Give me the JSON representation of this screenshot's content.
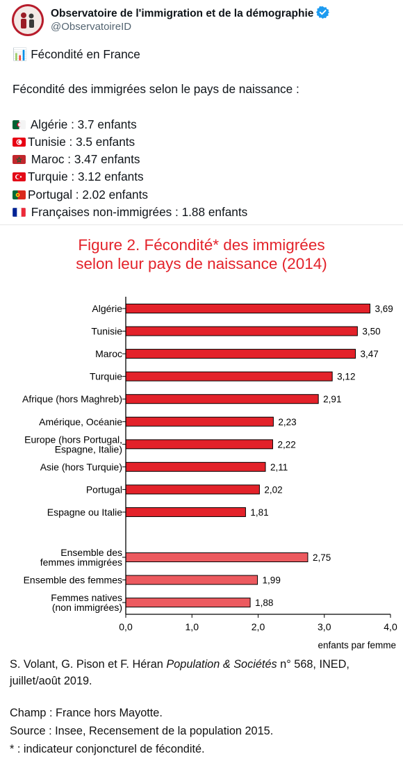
{
  "author": {
    "name": "Observatoire de l'immigration et de la démographie",
    "handle": "@ObservatoireID",
    "verified_icon": "verified-badge-icon"
  },
  "tweet": {
    "chart_emoji": "📊",
    "title": "Fécondité en France",
    "intro": "Fécondité des immigrées selon le pays de naissance :",
    "lines": [
      {
        "flag": "algeria-flag-icon",
        "text": " Algérie : 3.7 enfants"
      },
      {
        "flag": "tunisia-flag-icon",
        "text": "Tunisie : 3.5 enfants"
      },
      {
        "flag": "morocco-flag-icon",
        "text": " Maroc : 3.47 enfants"
      },
      {
        "flag": "turkey-flag-icon",
        "text": "Turquie : 3.12 enfants"
      },
      {
        "flag": "portugal-flag-icon",
        "text": "Portugal : 2.02 enfants"
      },
      {
        "flag": "france-flag-icon",
        "text": " Françaises non-immigrées : 1.88 enfants"
      }
    ]
  },
  "colors": {
    "bar_dark": "#e3222a",
    "bar_light": "#ec5a5f",
    "title_red": "#e3222a"
  },
  "chart_data": {
    "type": "bar",
    "orientation": "horizontal",
    "title_line1": "Figure 2. Fécondité* des immigrées",
    "title_line2": "selon leur pays de naissance (2014)",
    "xlabel": "enfants par femme",
    "xlim": [
      0,
      4
    ],
    "xticks": [
      "0,0",
      "1,0",
      "2,0",
      "3,0",
      "4,0"
    ],
    "grid": false,
    "groups": [
      {
        "style": "dark",
        "bars": [
          {
            "label": [
              "Algérie"
            ],
            "value": 3.69,
            "value_label": "3,69"
          },
          {
            "label": [
              "Tunisie"
            ],
            "value": 3.5,
            "value_label": "3,50"
          },
          {
            "label": [
              "Maroc"
            ],
            "value": 3.47,
            "value_label": "3,47"
          },
          {
            "label": [
              "Turquie"
            ],
            "value": 3.12,
            "value_label": "3,12"
          },
          {
            "label": [
              "Afrique (hors Maghreb)"
            ],
            "value": 2.91,
            "value_label": "2,91"
          },
          {
            "label": [
              "Amérique, Océanie"
            ],
            "value": 2.23,
            "value_label": "2,23"
          },
          {
            "label": [
              "Europe (hors Portugal,",
              "Espagne, Italie)"
            ],
            "value": 2.22,
            "value_label": "2,22"
          },
          {
            "label": [
              "Asie (hors Turquie)"
            ],
            "value": 2.11,
            "value_label": "2,11"
          },
          {
            "label": [
              "Portugal"
            ],
            "value": 2.02,
            "value_label": "2,02"
          },
          {
            "label": [
              "Espagne ou Italie"
            ],
            "value": 1.81,
            "value_label": "1,81"
          }
        ]
      },
      {
        "style": "light",
        "bars": [
          {
            "label": [
              "Ensemble des",
              "femmes immigrées"
            ],
            "value": 2.75,
            "value_label": "2,75"
          },
          {
            "label": [
              "Ensemble des femmes"
            ],
            "value": 1.99,
            "value_label": "1,99"
          },
          {
            "label": [
              "Femmes natives",
              "(non immigrées)"
            ],
            "value": 1.88,
            "value_label": "1,88"
          }
        ]
      }
    ]
  },
  "caption": {
    "source_authors": "S. Volant, G. Pison et F. Héran ",
    "source_journal": "Population & Sociétés",
    "source_rest": " n° 568, INED,",
    "source_line2": "juillet/août 2019.",
    "champ": "Champ : France hors Mayotte.",
    "source": "Source : Insee, Recensement de la population 2015.",
    "note": "* : indicateur conjoncturel de fécondité."
  }
}
